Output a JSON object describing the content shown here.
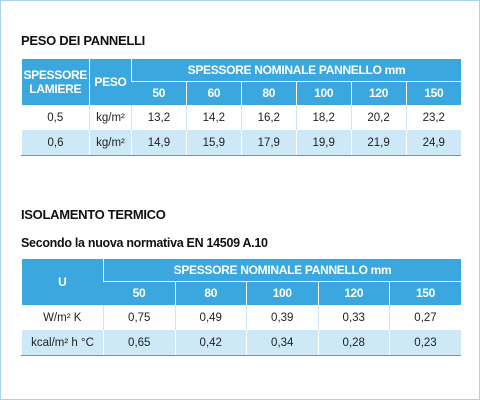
{
  "section1": {
    "title": "PESO DEI PANNELLI",
    "table": {
      "header": {
        "col1": "SPESSORE LAMIERE",
        "col2": "PESO",
        "group": "SPESSORE NOMINALE PANNELLO mm",
        "thicknesses": [
          "50",
          "60",
          "80",
          "100",
          "120",
          "150"
        ]
      },
      "rows": [
        [
          "0,5",
          "kg/m²",
          "13,2",
          "14,2",
          "16,2",
          "18,2",
          "20,2",
          "23,2"
        ],
        [
          "0,6",
          "kg/m²",
          "14,9",
          "15,9",
          "17,9",
          "19,9",
          "21,9",
          "24,9"
        ]
      ]
    }
  },
  "section2": {
    "title": "ISOLAMENTO TERMICO",
    "subtitle": "Secondo la nuova normativa EN 14509 A.10",
    "table": {
      "header": {
        "col1": "U",
        "group": "SPESSORE NOMINALE PANNELLO mm",
        "thicknesses": [
          "50",
          "80",
          "100",
          "120",
          "150"
        ]
      },
      "rows": [
        [
          "W/m² K",
          "0,75",
          "0,49",
          "0,39",
          "0,33",
          "0,27"
        ],
        [
          "kcal/m² h °C",
          "0,65",
          "0,42",
          "0,34",
          "0,28",
          "0,23"
        ]
      ]
    }
  }
}
